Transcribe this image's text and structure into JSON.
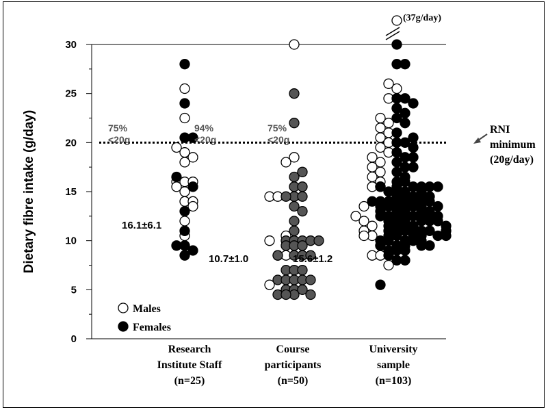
{
  "chart_data": {
    "type": "scatter",
    "ylabel": "Dietary fibre intake (g/day)",
    "ylim": [
      0,
      30
    ],
    "yticks": [
      {
        "value": 0,
        "label": "0"
      },
      {
        "value": 5,
        "label": "5"
      },
      {
        "value": 10,
        "label": "10"
      },
      {
        "value": 15,
        "label": "15"
      },
      {
        "value": 20,
        "label": "20"
      },
      {
        "value": 25,
        "label": "25"
      },
      {
        "value": 30,
        "label": "30"
      }
    ],
    "categories": [
      {
        "lines": [
          "Research",
          "Institute Staff",
          "(n=25)"
        ]
      },
      {
        "lines": [
          "Course",
          "participants",
          "(n=50)"
        ]
      },
      {
        "lines": [
          "University",
          "sample",
          "(n=103)"
        ]
      }
    ],
    "reference_line": {
      "value": 20,
      "style": "dotted",
      "label_lines": [
        "RNI",
        "minimum",
        "(20g/day)"
      ]
    },
    "break_note": "(37g/day)",
    "legend": [
      {
        "label": "Males",
        "fill": "#ffffff"
      },
      {
        "label": "Females",
        "fill": "#000000"
      }
    ],
    "colors": {
      "female": "#000000",
      "course": "#555555",
      "male": "#ffffff"
    },
    "percent_labels": [
      {
        "lines": [
          "75%",
          "<20g"
        ],
        "group": "Research Institute Staff (Males)"
      },
      {
        "lines": [
          "94%",
          "<20g"
        ],
        "group": "Research Institute Staff (Females)"
      },
      {
        "lines": [
          "75%",
          "<20g"
        ],
        "group": "Course participants"
      }
    ],
    "mean_labels": [
      {
        "text": "16.1±6.1",
        "group": "Research Institute Staff"
      },
      {
        "text": "10.7±1.0",
        "group": "Course participants"
      },
      {
        "text": "15.6±1.2",
        "group": "University sample"
      }
    ],
    "series": [
      {
        "category": 0,
        "fill": "#ffffff",
        "points": [
          {
            "dx": 0,
            "y": 25.5
          },
          {
            "dx": 0,
            "y": 22.5
          },
          {
            "dx": -1,
            "y": 19.5
          },
          {
            "dx": 0,
            "y": 19
          },
          {
            "dx": 1,
            "y": 18.5
          },
          {
            "dx": 0,
            "y": 18
          },
          {
            "dx": -1,
            "y": 16
          },
          {
            "dx": 0,
            "y": 16
          },
          {
            "dx": 1,
            "y": 16
          },
          {
            "dx": -1,
            "y": 15.5
          },
          {
            "dx": 0,
            "y": 15
          },
          {
            "dx": 0,
            "y": 14
          },
          {
            "dx": 1,
            "y": 14
          },
          {
            "dx": 1,
            "y": 13.5
          },
          {
            "dx": 0,
            "y": 12
          },
          {
            "dx": 0,
            "y": 10.5
          }
        ]
      },
      {
        "category": 0,
        "fill": "#000000",
        "points": [
          {
            "dx": 0,
            "y": 28
          },
          {
            "dx": 0,
            "y": 24
          },
          {
            "dx": 0,
            "y": 20.5
          },
          {
            "dx": 1,
            "y": 20.5
          },
          {
            "dx": -1,
            "y": 16.5
          },
          {
            "dx": 1,
            "y": 15.5
          },
          {
            "dx": 0,
            "y": 13
          },
          {
            "dx": 0,
            "y": 11
          },
          {
            "dx": -1,
            "y": 9.5
          },
          {
            "dx": 0,
            "y": 9.5
          },
          {
            "dx": 1,
            "y": 9
          },
          {
            "dx": 0,
            "y": 8.5
          }
        ]
      },
      {
        "category": 1,
        "fill": "#ffffff",
        "points": [
          {
            "dx": 0,
            "y": 30
          },
          {
            "dx": 0,
            "y": 18.5
          },
          {
            "dx": -1,
            "y": 18
          },
          {
            "dx": -3,
            "y": 14.5
          },
          {
            "dx": -2,
            "y": 14.5
          },
          {
            "dx": -3,
            "y": 10
          },
          {
            "dx": -1,
            "y": 10.5
          },
          {
            "dx": -2,
            "y": 8.5
          },
          {
            "dx": -1,
            "y": 8.5
          },
          {
            "dx": -3,
            "y": 5.5
          }
        ]
      },
      {
        "category": 1,
        "fill": "#555555",
        "points": [
          {
            "dx": 0,
            "y": 25
          },
          {
            "dx": 0,
            "y": 22
          },
          {
            "dx": 1,
            "y": 17
          },
          {
            "dx": 0,
            "y": 16.5
          },
          {
            "dx": 0,
            "y": 15.5
          },
          {
            "dx": 1,
            "y": 15.5
          },
          {
            "dx": 0,
            "y": 14.5
          },
          {
            "dx": 1,
            "y": 14.5
          },
          {
            "dx": -1,
            "y": 14.5
          },
          {
            "dx": 0,
            "y": 13.5
          },
          {
            "dx": 1,
            "y": 13
          },
          {
            "dx": 0,
            "y": 12
          },
          {
            "dx": 0,
            "y": 11
          },
          {
            "dx": -1,
            "y": 10
          },
          {
            "dx": 0,
            "y": 10
          },
          {
            "dx": 1,
            "y": 10
          },
          {
            "dx": 2,
            "y": 10
          },
          {
            "dx": 3,
            "y": 10
          },
          {
            "dx": -1,
            "y": 9.5
          },
          {
            "dx": 0,
            "y": 9.5
          },
          {
            "dx": 1,
            "y": 9.5
          },
          {
            "dx": 0,
            "y": 8.5
          },
          {
            "dx": 1,
            "y": 8.5
          },
          {
            "dx": 2,
            "y": 8.5
          },
          {
            "dx": -1,
            "y": 7
          },
          {
            "dx": 0,
            "y": 7
          },
          {
            "dx": 1,
            "y": 7
          },
          {
            "dx": -2,
            "y": 6
          },
          {
            "dx": -1,
            "y": 6
          },
          {
            "dx": 0,
            "y": 6
          },
          {
            "dx": 1,
            "y": 6
          },
          {
            "dx": 2,
            "y": 6
          },
          {
            "dx": -1,
            "y": 5
          },
          {
            "dx": 0,
            "y": 5
          },
          {
            "dx": 1,
            "y": 5
          },
          {
            "dx": -2,
            "y": 4.5
          },
          {
            "dx": 0,
            "y": 4.5
          },
          {
            "dx": 2,
            "y": 4.5
          },
          {
            "dx": -2,
            "y": 8.5
          },
          {
            "dx": -1,
            "y": 4.5
          }
        ]
      },
      {
        "category": 2,
        "fill": "#ffffff",
        "points": [
          {
            "dx": 0,
            "y": 32
          },
          {
            "dx": -1,
            "y": 26
          },
          {
            "dx": 0,
            "y": 25.5
          },
          {
            "dx": -1,
            "y": 24.5
          },
          {
            "dx": 0,
            "y": 23.5
          },
          {
            "dx": -2,
            "y": 22.5
          },
          {
            "dx": -1,
            "y": 22
          },
          {
            "dx": -2,
            "y": 21.5
          },
          {
            "dx": -1,
            "y": 21
          },
          {
            "dx": -2,
            "y": 20.5
          },
          {
            "dx": -1,
            "y": 20
          },
          {
            "dx": -2,
            "y": 19.5
          },
          {
            "dx": -1,
            "y": 19
          },
          {
            "dx": -3,
            "y": 18.5
          },
          {
            "dx": -2,
            "y": 18
          },
          {
            "dx": -3,
            "y": 17.5
          },
          {
            "dx": -2,
            "y": 17
          },
          {
            "dx": -3,
            "y": 16.5
          },
          {
            "dx": -2,
            "y": 16
          },
          {
            "dx": -3,
            "y": 15.5
          },
          {
            "dx": -2,
            "y": 15.5
          },
          {
            "dx": -4,
            "y": 13.5
          },
          {
            "dx": -5,
            "y": 12.5
          },
          {
            "dx": -4,
            "y": 12
          },
          {
            "dx": -3,
            "y": 11.5
          },
          {
            "dx": -4,
            "y": 11
          },
          {
            "dx": -3,
            "y": 10.5
          },
          {
            "dx": -4,
            "y": 10.5
          },
          {
            "dx": -2,
            "y": 9.5
          },
          {
            "dx": -3,
            "y": 8.5
          },
          {
            "dx": -2,
            "y": 8.5
          },
          {
            "dx": -1,
            "y": 7.5
          }
        ]
      },
      {
        "category": 2,
        "fill": "#000000",
        "points": [
          {
            "dx": 0,
            "y": 30
          },
          {
            "dx": 0,
            "y": 28
          },
          {
            "dx": 1,
            "y": 28
          },
          {
            "dx": 0,
            "y": 24.5
          },
          {
            "dx": 1,
            "y": 24.5
          },
          {
            "dx": 2,
            "y": 24
          },
          {
            "dx": 0,
            "y": 23.5
          },
          {
            "dx": 1,
            "y": 23
          },
          {
            "dx": 0,
            "y": 22.5
          },
          {
            "dx": 1,
            "y": 22
          },
          {
            "dx": 0,
            "y": 21
          },
          {
            "dx": 2,
            "y": 20.5
          },
          {
            "dx": 0,
            "y": 20
          },
          {
            "dx": 1,
            "y": 20
          },
          {
            "dx": 2,
            "y": 19.5
          },
          {
            "dx": 0,
            "y": 19
          },
          {
            "dx": 1,
            "y": 18.5
          },
          {
            "dx": 2,
            "y": 18.5
          },
          {
            "dx": 0,
            "y": 18
          },
          {
            "dx": 1,
            "y": 17.5
          },
          {
            "dx": 2,
            "y": 17.5
          },
          {
            "dx": 0,
            "y": 17
          },
          {
            "dx": 1,
            "y": 16.5
          },
          {
            "dx": 0,
            "y": 16
          },
          {
            "dx": 1,
            "y": 16
          },
          {
            "dx": 0,
            "y": 15.5
          },
          {
            "dx": 2,
            "y": 15.5
          },
          {
            "dx": 3,
            "y": 15.5
          },
          {
            "dx": 4,
            "y": 15.5
          },
          {
            "dx": 5,
            "y": 15.5
          },
          {
            "dx": -2,
            "y": 15.5
          },
          {
            "dx": -1,
            "y": 15
          },
          {
            "dx": 0,
            "y": 15
          },
          {
            "dx": 1,
            "y": 15
          },
          {
            "dx": 3,
            "y": 15
          },
          {
            "dx": 0,
            "y": 14.5
          },
          {
            "dx": 1,
            "y": 14.5
          },
          {
            "dx": 2,
            "y": 14.5
          },
          {
            "dx": 3,
            "y": 14.5
          },
          {
            "dx": 4,
            "y": 14.5
          },
          {
            "dx": -3,
            "y": 14
          },
          {
            "dx": -2,
            "y": 14
          },
          {
            "dx": -1,
            "y": 14
          },
          {
            "dx": 0,
            "y": 14
          },
          {
            "dx": 1,
            "y": 14
          },
          {
            "dx": 2,
            "y": 14
          },
          {
            "dx": 3,
            "y": 14
          },
          {
            "dx": 4,
            "y": 14
          },
          {
            "dx": -2,
            "y": 13.5
          },
          {
            "dx": -1,
            "y": 13.5
          },
          {
            "dx": 0,
            "y": 13.5
          },
          {
            "dx": 1,
            "y": 13.5
          },
          {
            "dx": 2,
            "y": 13.5
          },
          {
            "dx": 3,
            "y": 13.5
          },
          {
            "dx": 5,
            "y": 13.5
          },
          {
            "dx": -2,
            "y": 13
          },
          {
            "dx": 0,
            "y": 13
          },
          {
            "dx": 1,
            "y": 13
          },
          {
            "dx": 3,
            "y": 13
          },
          {
            "dx": 4,
            "y": 13
          },
          {
            "dx": -2,
            "y": 12.5
          },
          {
            "dx": -1,
            "y": 12.5
          },
          {
            "dx": 0,
            "y": 12.5
          },
          {
            "dx": 1,
            "y": 12.5
          },
          {
            "dx": 2,
            "y": 12.5
          },
          {
            "dx": 3,
            "y": 12.5
          },
          {
            "dx": 4,
            "y": 12.5
          },
          {
            "dx": 5,
            "y": 12.5
          },
          {
            "dx": -1,
            "y": 12
          },
          {
            "dx": 0,
            "y": 12
          },
          {
            "dx": 1,
            "y": 12
          },
          {
            "dx": 3,
            "y": 12
          },
          {
            "dx": 4,
            "y": 12
          },
          {
            "dx": 5,
            "y": 12
          },
          {
            "dx": -1,
            "y": 11.5
          },
          {
            "dx": 0,
            "y": 11.5
          },
          {
            "dx": 1,
            "y": 11.5
          },
          {
            "dx": 2,
            "y": 11.5
          },
          {
            "dx": 6,
            "y": 11.5
          },
          {
            "dx": -1,
            "y": 11
          },
          {
            "dx": 0,
            "y": 11
          },
          {
            "dx": 1,
            "y": 11
          },
          {
            "dx": 2,
            "y": 11
          },
          {
            "dx": 3,
            "y": 11
          },
          {
            "dx": 4,
            "y": 11
          },
          {
            "dx": 6,
            "y": 11
          },
          {
            "dx": -1,
            "y": 10.5
          },
          {
            "dx": 0,
            "y": 10.5
          },
          {
            "dx": 2,
            "y": 10.5
          },
          {
            "dx": 3,
            "y": 10.5
          },
          {
            "dx": 5,
            "y": 10.5
          },
          {
            "dx": 6,
            "y": 10.5
          },
          {
            "dx": -2,
            "y": 10
          },
          {
            "dx": -1,
            "y": 10
          },
          {
            "dx": 1,
            "y": 10
          },
          {
            "dx": 2,
            "y": 10
          },
          {
            "dx": 3,
            "y": 10
          },
          {
            "dx": -2,
            "y": 9.5
          },
          {
            "dx": 0,
            "y": 9.5
          },
          {
            "dx": 1,
            "y": 9.5
          },
          {
            "dx": 3,
            "y": 9.5
          },
          {
            "dx": 4,
            "y": 9.5
          },
          {
            "dx": -1,
            "y": 9
          },
          {
            "dx": 0,
            "y": 9
          },
          {
            "dx": 1,
            "y": 9
          },
          {
            "dx": -1,
            "y": 8.5
          },
          {
            "dx": 0,
            "y": 8
          },
          {
            "dx": 1,
            "y": 8
          },
          {
            "dx": -2,
            "y": 5.5
          }
        ]
      }
    ]
  }
}
